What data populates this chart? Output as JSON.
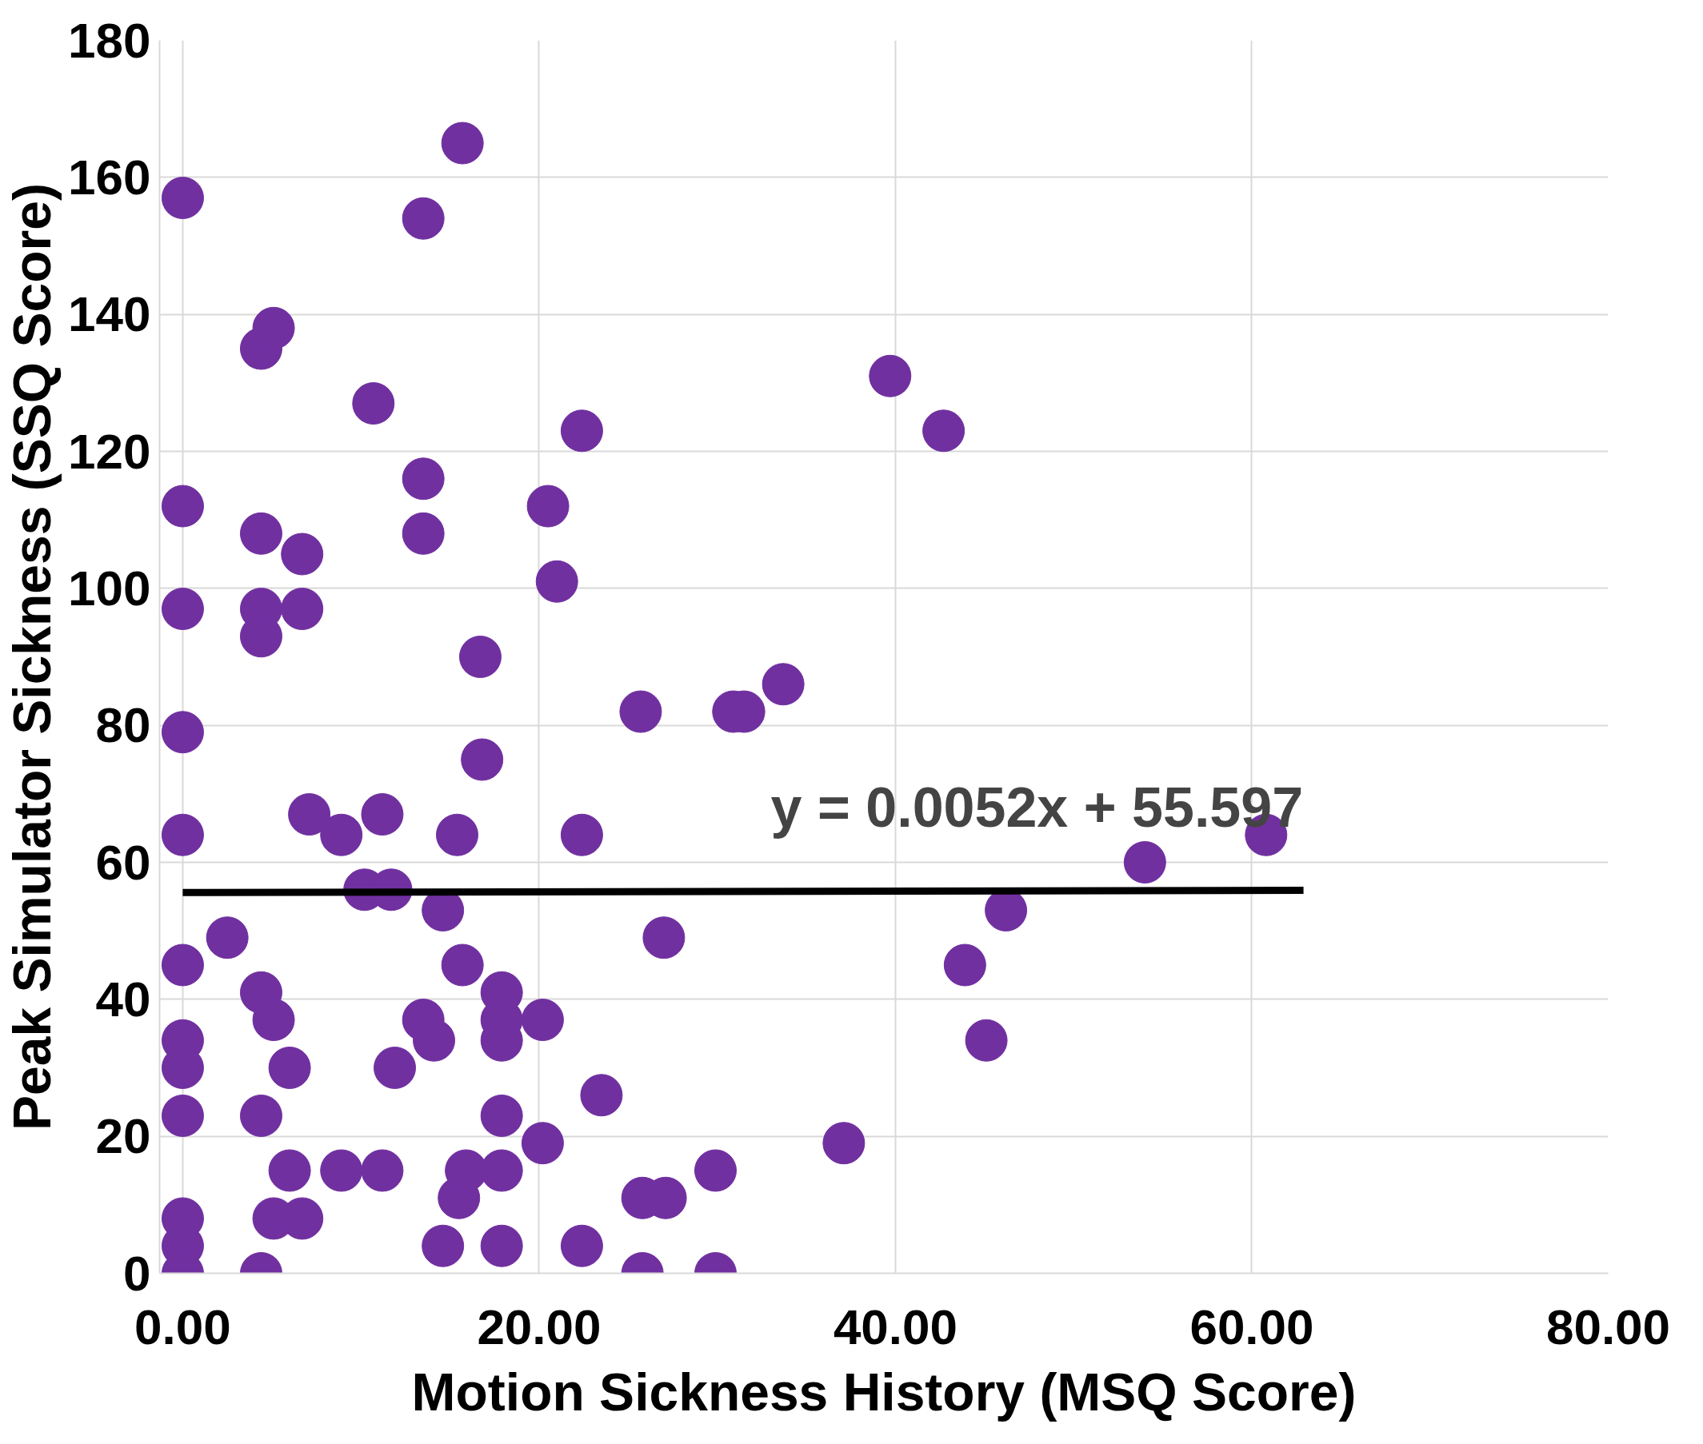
{
  "chart_data": {
    "type": "scatter",
    "xlabel": "Motion Sickness History (MSQ Score)",
    "ylabel": "Peak Simulator Sickness (SSQ Score)",
    "xlim": [
      -1.3,
      80
    ],
    "ylim": [
      0,
      180
    ],
    "xticks": [
      {
        "value": 0,
        "label": "0.00"
      },
      {
        "value": 20,
        "label": "20.00"
      },
      {
        "value": 40,
        "label": "40.00"
      },
      {
        "value": 60,
        "label": "60.00"
      },
      {
        "value": 80,
        "label": "80.00"
      }
    ],
    "yticks": [
      0,
      20,
      40,
      60,
      80,
      100,
      120,
      140,
      160,
      180
    ],
    "grid": true,
    "marker": "circle",
    "series": [
      {
        "color": "#7030a0",
        "x": [
          0,
          0,
          0,
          0,
          0,
          0,
          0,
          0,
          0,
          0,
          0,
          0,
          2.5,
          4.4,
          4.4,
          4.4,
          4.4,
          4.4,
          4.4,
          4.4,
          5.1,
          5.1,
          5.1,
          6.0,
          6.0,
          6.7,
          6.7,
          6.7,
          7.1,
          8.9,
          8.9,
          10.2,
          10.7,
          11.2,
          11.2,
          11.7,
          11.9,
          13.5,
          13.5,
          13.5,
          13.5,
          14.1,
          14.6,
          14.6,
          15.4,
          15.5,
          15.7,
          15.7,
          15.9,
          16.7,
          16.8,
          17.9,
          17.9,
          17.9,
          17.9,
          17.9,
          17.9,
          20.2,
          20.2,
          20.5,
          21.0,
          22.4,
          22.4,
          22.4,
          23.5,
          25.7,
          25.8,
          25.8,
          27.0,
          27.1,
          29.9,
          29.9,
          30.9,
          31.5,
          33.7,
          37.1,
          39.7,
          42.7,
          43.9,
          45.1,
          46.2,
          54.0,
          60.8
        ],
        "values": [
          157,
          112,
          97,
          79,
          64,
          45,
          34,
          30,
          23,
          8,
          4,
          0,
          49,
          135,
          108,
          97,
          93,
          41,
          23,
          0,
          138,
          37,
          8,
          30,
          15,
          105,
          97,
          8,
          67,
          64,
          15,
          56,
          127,
          67,
          15,
          56,
          30,
          154,
          116,
          108,
          37,
          34,
          53,
          4,
          64,
          11,
          165,
          45,
          15,
          90,
          75,
          41,
          37,
          34,
          23,
          15,
          4,
          37,
          19,
          112,
          101,
          123,
          64,
          4,
          26,
          82,
          11,
          0,
          49,
          11,
          15,
          0,
          82,
          82,
          86,
          19,
          131,
          123,
          45,
          34,
          53,
          60,
          64
        ]
      },
      {
        "type": "line",
        "marker": "none",
        "color": "#000000",
        "x": [
          0,
          62.9
        ],
        "values": [
          55.6,
          55.9
        ]
      }
    ],
    "annotations": [
      "y = 0.0052x + 55.597"
    ]
  }
}
